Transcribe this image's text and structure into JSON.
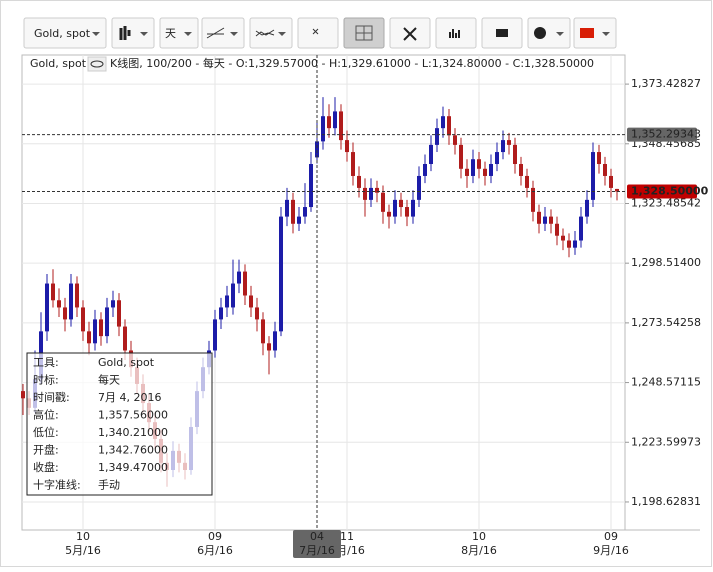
{
  "toolbar": {
    "instrument": "Gold, spot",
    "period": "天"
  },
  "header": {
    "instrument": "Gold, spot",
    "info": "K线图, 100/200 - 每天 - O:1,329.57000 - H:1,329.61000 - L:1,324.80000 - C:1,328.50000"
  },
  "chart_data": {
    "type": "candlestick",
    "series": [
      {
        "up_color": "#1c1ca8",
        "down_color": "#b01c1c",
        "values": [
          [
            1245,
            1248,
            1235,
            1242
          ],
          [
            1242,
            1245,
            1235,
            1238
          ],
          [
            1238,
            1262,
            1236,
            1250
          ],
          [
            1250,
            1278,
            1248,
            1270
          ],
          [
            1270,
            1294,
            1266,
            1290
          ],
          [
            1290,
            1296,
            1280,
            1283
          ],
          [
            1283,
            1288,
            1276,
            1280
          ],
          [
            1280,
            1284,
            1270,
            1275
          ],
          [
            1275,
            1294,
            1272,
            1290
          ],
          [
            1290,
            1293,
            1276,
            1280
          ],
          [
            1280,
            1283,
            1266,
            1270
          ],
          [
            1270,
            1274,
            1260,
            1265
          ],
          [
            1265,
            1279,
            1262,
            1275
          ],
          [
            1275,
            1278,
            1264,
            1268
          ],
          [
            1268,
            1284,
            1265,
            1280
          ],
          [
            1280,
            1287,
            1276,
            1283
          ],
          [
            1283,
            1286,
            1268,
            1272
          ],
          [
            1272,
            1275,
            1258,
            1262
          ],
          [
            1262,
            1266,
            1251,
            1255
          ],
          [
            1255,
            1259,
            1244,
            1248
          ],
          [
            1248,
            1252,
            1236,
            1240
          ],
          [
            1240,
            1244,
            1228,
            1232
          ],
          [
            1232,
            1236,
            1221,
            1225
          ],
          [
            1225,
            1229,
            1211,
            1215
          ],
          [
            1215,
            1219,
            1205,
            1212
          ],
          [
            1212,
            1224,
            1209,
            1220
          ],
          [
            1220,
            1223,
            1211,
            1215
          ],
          [
            1215,
            1219,
            1208,
            1212
          ],
          [
            1212,
            1234,
            1210,
            1230
          ],
          [
            1230,
            1249,
            1227,
            1245
          ],
          [
            1245,
            1259,
            1242,
            1255
          ],
          [
            1255,
            1266,
            1252,
            1262
          ],
          [
            1262,
            1279,
            1259,
            1275
          ],
          [
            1275,
            1284,
            1271,
            1280
          ],
          [
            1280,
            1289,
            1276,
            1285
          ],
          [
            1280,
            1300,
            1277,
            1290
          ],
          [
            1290,
            1300,
            1286,
            1295
          ],
          [
            1295,
            1298,
            1281,
            1285
          ],
          [
            1285,
            1289,
            1276,
            1280
          ],
          [
            1280,
            1284,
            1270,
            1275
          ],
          [
            1275,
            1278,
            1260,
            1265
          ],
          [
            1265,
            1268,
            1252,
            1262
          ],
          [
            1262,
            1274,
            1259,
            1270
          ],
          [
            1270,
            1322,
            1268,
            1318
          ],
          [
            1318,
            1330,
            1314,
            1325
          ],
          [
            1325,
            1328,
            1311,
            1315
          ],
          [
            1315,
            1322,
            1312,
            1318
          ],
          [
            1318,
            1332,
            1315,
            1322
          ],
          [
            1322,
            1345,
            1320,
            1340
          ],
          [
            1342.76,
            1357.56,
            1340.21,
            1349.47
          ],
          [
            1349.47,
            1368,
            1346,
            1360
          ],
          [
            1360,
            1365,
            1351,
            1355
          ],
          [
            1355,
            1368,
            1352,
            1362
          ],
          [
            1362,
            1365,
            1346,
            1350
          ],
          [
            1350,
            1354,
            1341,
            1345
          ],
          [
            1345,
            1349,
            1331,
            1335
          ],
          [
            1335,
            1339,
            1326,
            1330
          ],
          [
            1330,
            1334,
            1318,
            1325
          ],
          [
            1325,
            1334,
            1322,
            1330
          ],
          [
            1330,
            1333,
            1324,
            1328
          ],
          [
            1328,
            1331,
            1315,
            1320
          ],
          [
            1320,
            1323,
            1313,
            1318
          ],
          [
            1318,
            1329,
            1315,
            1325
          ],
          [
            1325,
            1328,
            1318,
            1322
          ],
          [
            1322,
            1325,
            1314,
            1318
          ],
          [
            1318,
            1329,
            1315,
            1325
          ],
          [
            1325,
            1339,
            1322,
            1335
          ],
          [
            1335,
            1344,
            1332,
            1340
          ],
          [
            1340,
            1352,
            1337,
            1348
          ],
          [
            1348,
            1359,
            1345,
            1355
          ],
          [
            1355,
            1364,
            1351,
            1360
          ],
          [
            1360,
            1363,
            1348,
            1352
          ],
          [
            1352,
            1355,
            1344,
            1348
          ],
          [
            1348,
            1351,
            1334,
            1338
          ],
          [
            1338,
            1342,
            1330,
            1335
          ],
          [
            1335,
            1346,
            1332,
            1342
          ],
          [
            1342,
            1345,
            1334,
            1338
          ],
          [
            1338,
            1341,
            1331,
            1335
          ],
          [
            1335,
            1344,
            1332,
            1340
          ],
          [
            1340,
            1349,
            1337,
            1345
          ],
          [
            1345,
            1354,
            1342,
            1350
          ],
          [
            1350,
            1353,
            1344,
            1348
          ],
          [
            1348,
            1351,
            1336,
            1340
          ],
          [
            1340,
            1343,
            1331,
            1335
          ],
          [
            1335,
            1338,
            1326,
            1330
          ],
          [
            1330,
            1333,
            1316,
            1320
          ],
          [
            1320,
            1323,
            1311,
            1315
          ],
          [
            1315,
            1322,
            1312,
            1318
          ],
          [
            1318,
            1321,
            1311,
            1315
          ],
          [
            1315,
            1318,
            1306,
            1310
          ],
          [
            1310,
            1313,
            1304,
            1308
          ],
          [
            1308,
            1311,
            1301,
            1305
          ],
          [
            1305,
            1312,
            1302,
            1308
          ],
          [
            1308,
            1322,
            1305,
            1318
          ],
          [
            1318,
            1329,
            1315,
            1325
          ],
          [
            1325,
            1349,
            1322,
            1345
          ],
          [
            1345,
            1348,
            1336,
            1340
          ],
          [
            1340,
            1343,
            1331,
            1335
          ],
          [
            1335,
            1338,
            1326,
            1330
          ],
          [
            1329.57,
            1329.61,
            1324.8,
            1328.5
          ]
        ]
      }
    ],
    "categories": [
      null,
      null,
      null,
      null,
      null,
      null,
      null,
      null,
      null,
      null,
      {
        "day": "10",
        "month": "5月/16"
      },
      null,
      null,
      null,
      null,
      null,
      null,
      null,
      null,
      null,
      null,
      null,
      null,
      null,
      null,
      null,
      null,
      null,
      null,
      null,
      null,
      null,
      {
        "day": "09",
        "month": "6月/16"
      },
      null,
      null,
      null,
      null,
      null,
      null,
      null,
      null,
      null,
      null,
      null,
      null,
      null,
      null,
      null,
      null,
      null,
      null,
      null,
      null,
      null,
      {
        "day": "11",
        "month": "7月/16"
      },
      null,
      null,
      null,
      null,
      null,
      null,
      null,
      null,
      null,
      null,
      null,
      null,
      null,
      null,
      null,
      null,
      null,
      null,
      null,
      null,
      null,
      {
        "day": "10",
        "month": "8月/16"
      },
      null,
      null,
      null,
      null,
      null,
      null,
      null,
      null,
      null,
      null,
      null,
      null,
      null,
      null,
      null,
      null,
      null,
      null,
      null,
      null,
      null,
      {
        "day": "09",
        "month": "9月/16"
      },
      null
    ],
    "ylim": [
      1186.9,
      1385.6
    ],
    "yticks": [
      {
        "value": 1373.42827,
        "label": "1,373.42827"
      },
      {
        "value": 1348.45685,
        "label": "1,348.45685"
      },
      {
        "value": 1323.48542,
        "label": "1,323.48542"
      },
      {
        "value": 1298.514,
        "label": "1,298.51400"
      },
      {
        "value": 1273.54258,
        "label": "1,273.54258"
      },
      {
        "value": 1248.57115,
        "label": "1,248.57115"
      },
      {
        "value": 1223.59973,
        "label": "1,223.59973"
      },
      {
        "value": 1198.62831,
        "label": "1,198.62831"
      }
    ],
    "grid": true,
    "crosshair": {
      "price": {
        "value": 1352.29343,
        "label": "1,352.29343"
      },
      "day": "04",
      "month": "7月/16"
    },
    "last_price": {
      "value": 1328.5,
      "label": "1,328.50000"
    }
  },
  "info_box": {
    "rows": [
      [
        "工具:",
        "Gold, spot"
      ],
      [
        "时标:",
        "每天"
      ],
      [
        "时间戳:",
        "7月 4, 2016"
      ],
      [
        "高位:",
        "1,357.56000"
      ],
      [
        "低位:",
        "1,340.21000"
      ],
      [
        "开盘:",
        "1,342.76000"
      ],
      [
        "收盘:",
        "1,349.47000"
      ],
      [
        "十字准线:",
        "手动"
      ]
    ]
  }
}
